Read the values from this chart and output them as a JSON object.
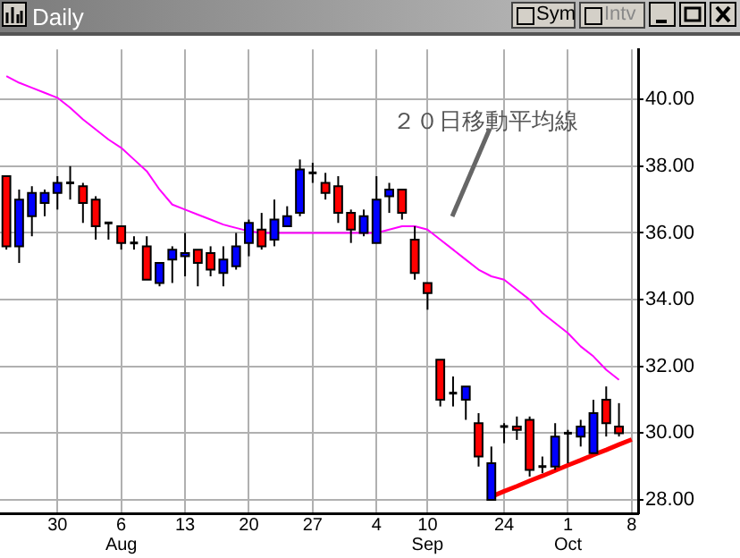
{
  "chart_data": {
    "type": "candlestick",
    "title": "Daily",
    "categories": [
      null,
      null,
      null,
      null,
      "30",
      null,
      null,
      null,
      null,
      "6\nAug",
      null,
      null,
      null,
      null,
      "13",
      null,
      null,
      null,
      null,
      "20",
      null,
      null,
      null,
      null,
      "27",
      null,
      null,
      null,
      null,
      "4",
      null,
      null,
      null,
      "10\nSep",
      null,
      null,
      null,
      null,
      null,
      "24",
      null,
      null,
      null,
      null,
      "1\nOct",
      null,
      null,
      null,
      null,
      "8"
    ],
    "ohlc": [
      [
        37.7,
        37.7,
        35.5,
        35.6
      ],
      [
        35.6,
        37.3,
        35.1,
        37.0
      ],
      [
        36.5,
        37.4,
        35.9,
        37.2
      ],
      [
        36.9,
        37.3,
        36.5,
        37.2
      ],
      [
        37.2,
        37.7,
        36.7,
        37.5
      ],
      [
        37.5,
        38.0,
        37.0,
        37.5
      ],
      [
        37.4,
        37.5,
        36.3,
        36.9
      ],
      [
        37.0,
        37.1,
        35.8,
        36.2
      ],
      [
        36.3,
        36.3,
        35.8,
        36.3
      ],
      [
        36.2,
        36.2,
        35.5,
        35.7
      ],
      [
        35.7,
        35.9,
        35.5,
        35.7
      ],
      [
        35.6,
        35.9,
        34.6,
        34.6
      ],
      [
        34.5,
        35.1,
        34.4,
        35.1
      ],
      [
        35.2,
        35.6,
        34.5,
        35.5
      ],
      [
        35.3,
        36.0,
        34.7,
        35.4
      ],
      [
        35.5,
        35.5,
        34.4,
        35.1
      ],
      [
        35.4,
        35.6,
        34.7,
        34.9
      ],
      [
        34.8,
        35.6,
        34.4,
        35.2
      ],
      [
        35.0,
        36.0,
        34.9,
        35.6
      ],
      [
        35.7,
        36.4,
        35.3,
        36.3
      ],
      [
        36.1,
        36.6,
        35.5,
        35.6
      ],
      [
        35.8,
        37.0,
        35.6,
        36.4
      ],
      [
        36.2,
        36.8,
        36.2,
        36.5
      ],
      [
        36.6,
        38.2,
        36.5,
        37.9
      ],
      [
        37.8,
        38.1,
        37.5,
        37.8
      ],
      [
        37.5,
        37.8,
        37.0,
        37.2
      ],
      [
        37.4,
        37.7,
        36.3,
        36.6
      ],
      [
        36.6,
        36.7,
        35.7,
        36.1
      ],
      [
        36.0,
        36.7,
        35.9,
        36.5
      ],
      [
        35.7,
        37.7,
        35.7,
        37.0
      ],
      [
        37.1,
        37.5,
        36.6,
        37.3
      ],
      [
        37.3,
        37.3,
        36.4,
        36.6
      ],
      [
        35.8,
        36.2,
        34.6,
        34.8
      ],
      [
        34.5,
        34.5,
        33.7,
        34.2
      ],
      [
        32.2,
        32.2,
        30.8,
        31.0
      ],
      [
        31.2,
        31.7,
        30.8,
        31.2
      ],
      [
        31.0,
        31.4,
        30.4,
        31.4
      ],
      [
        30.3,
        30.6,
        29.0,
        29.3
      ],
      [
        28.0,
        29.6,
        28.0,
        29.1
      ],
      [
        30.2,
        30.3,
        29.7,
        30.2
      ],
      [
        30.2,
        30.5,
        29.8,
        30.1
      ],
      [
        30.4,
        30.5,
        28.7,
        28.9
      ],
      [
        29.0,
        29.3,
        28.8,
        29.0
      ],
      [
        29.0,
        30.3,
        28.9,
        29.9
      ],
      [
        30.0,
        30.1,
        29.1,
        30.0
      ],
      [
        29.9,
        30.4,
        29.6,
        30.2
      ],
      [
        29.4,
        31.0,
        29.4,
        30.6
      ],
      [
        31.0,
        31.4,
        29.9,
        30.3
      ],
      [
        30.2,
        30.9,
        29.9,
        30.0
      ],
      null
    ],
    "colors": [
      "#ff0000",
      "#0000ff",
      "#0000ff",
      "#0000ff",
      "#0000ff",
      "#000000",
      "#ff0000",
      "#ff0000",
      "#000000",
      "#ff0000",
      "#000000",
      "#ff0000",
      "#0000ff",
      "#0000ff",
      "#0000ff",
      "#ff0000",
      "#ff0000",
      "#0000ff",
      "#0000ff",
      "#0000ff",
      "#ff0000",
      "#0000ff",
      "#0000ff",
      "#0000ff",
      "#000000",
      "#ff0000",
      "#ff0000",
      "#ff0000",
      "#0000ff",
      "#0000ff",
      "#0000ff",
      "#ff0000",
      "#ff0000",
      "#ff0000",
      "#ff0000",
      "#000000",
      "#0000ff",
      "#ff0000",
      "#0000ff",
      "#000000",
      "#ff0000",
      "#ff0000",
      "#000000",
      "#0000ff",
      "#000000",
      "#0000ff",
      "#0000ff",
      "#ff0000",
      "#ff0000",
      null
    ],
    "series": [
      {
        "type": "line",
        "name": "２０日移動平均線",
        "color": "#ff00ff",
        "values": [
          40.7,
          40.5,
          40.35,
          40.2,
          40.05,
          39.75,
          39.4,
          39.1,
          38.8,
          38.55,
          38.2,
          37.85,
          37.3,
          36.85,
          36.7,
          36.55,
          36.4,
          36.25,
          36.15,
          36.05,
          36.0,
          36.0,
          36.0,
          36.0,
          36.0,
          36.0,
          36.0,
          36.0,
          36.0,
          36.0,
          36.1,
          36.2,
          36.2,
          36.1,
          35.8,
          35.5,
          35.2,
          34.9,
          34.7,
          34.6,
          34.3,
          34.0,
          33.6,
          33.3,
          33.0,
          32.6,
          32.3,
          31.9,
          31.6,
          null
        ]
      },
      {
        "type": "line",
        "color": "#ff0000",
        "values": [
          null,
          null,
          null,
          null,
          null,
          null,
          null,
          null,
          null,
          null,
          null,
          null,
          null,
          null,
          null,
          null,
          null,
          null,
          null,
          null,
          null,
          null,
          null,
          null,
          null,
          null,
          null,
          null,
          null,
          null,
          null,
          null,
          null,
          null,
          null,
          null,
          null,
          null,
          28.1,
          28.26,
          28.41,
          28.57,
          28.72,
          28.88,
          29.04,
          29.19,
          29.35,
          29.5,
          29.66,
          29.81
        ]
      }
    ],
    "ylim": [
      27.6,
      41.5
    ],
    "yticks": [
      {
        "value": 28,
        "label": "28.00"
      },
      {
        "value": 30,
        "label": "30.00"
      },
      {
        "value": 32,
        "label": "32.00"
      },
      {
        "value": 34,
        "label": "34.00"
      },
      {
        "value": 36,
        "label": "36.00"
      },
      {
        "value": 38,
        "label": "38.00"
      },
      {
        "value": 40,
        "label": "40.00"
      }
    ],
    "grid": true,
    "legend": false,
    "annotations": [
      "Sym",
      "Intv"
    ]
  }
}
